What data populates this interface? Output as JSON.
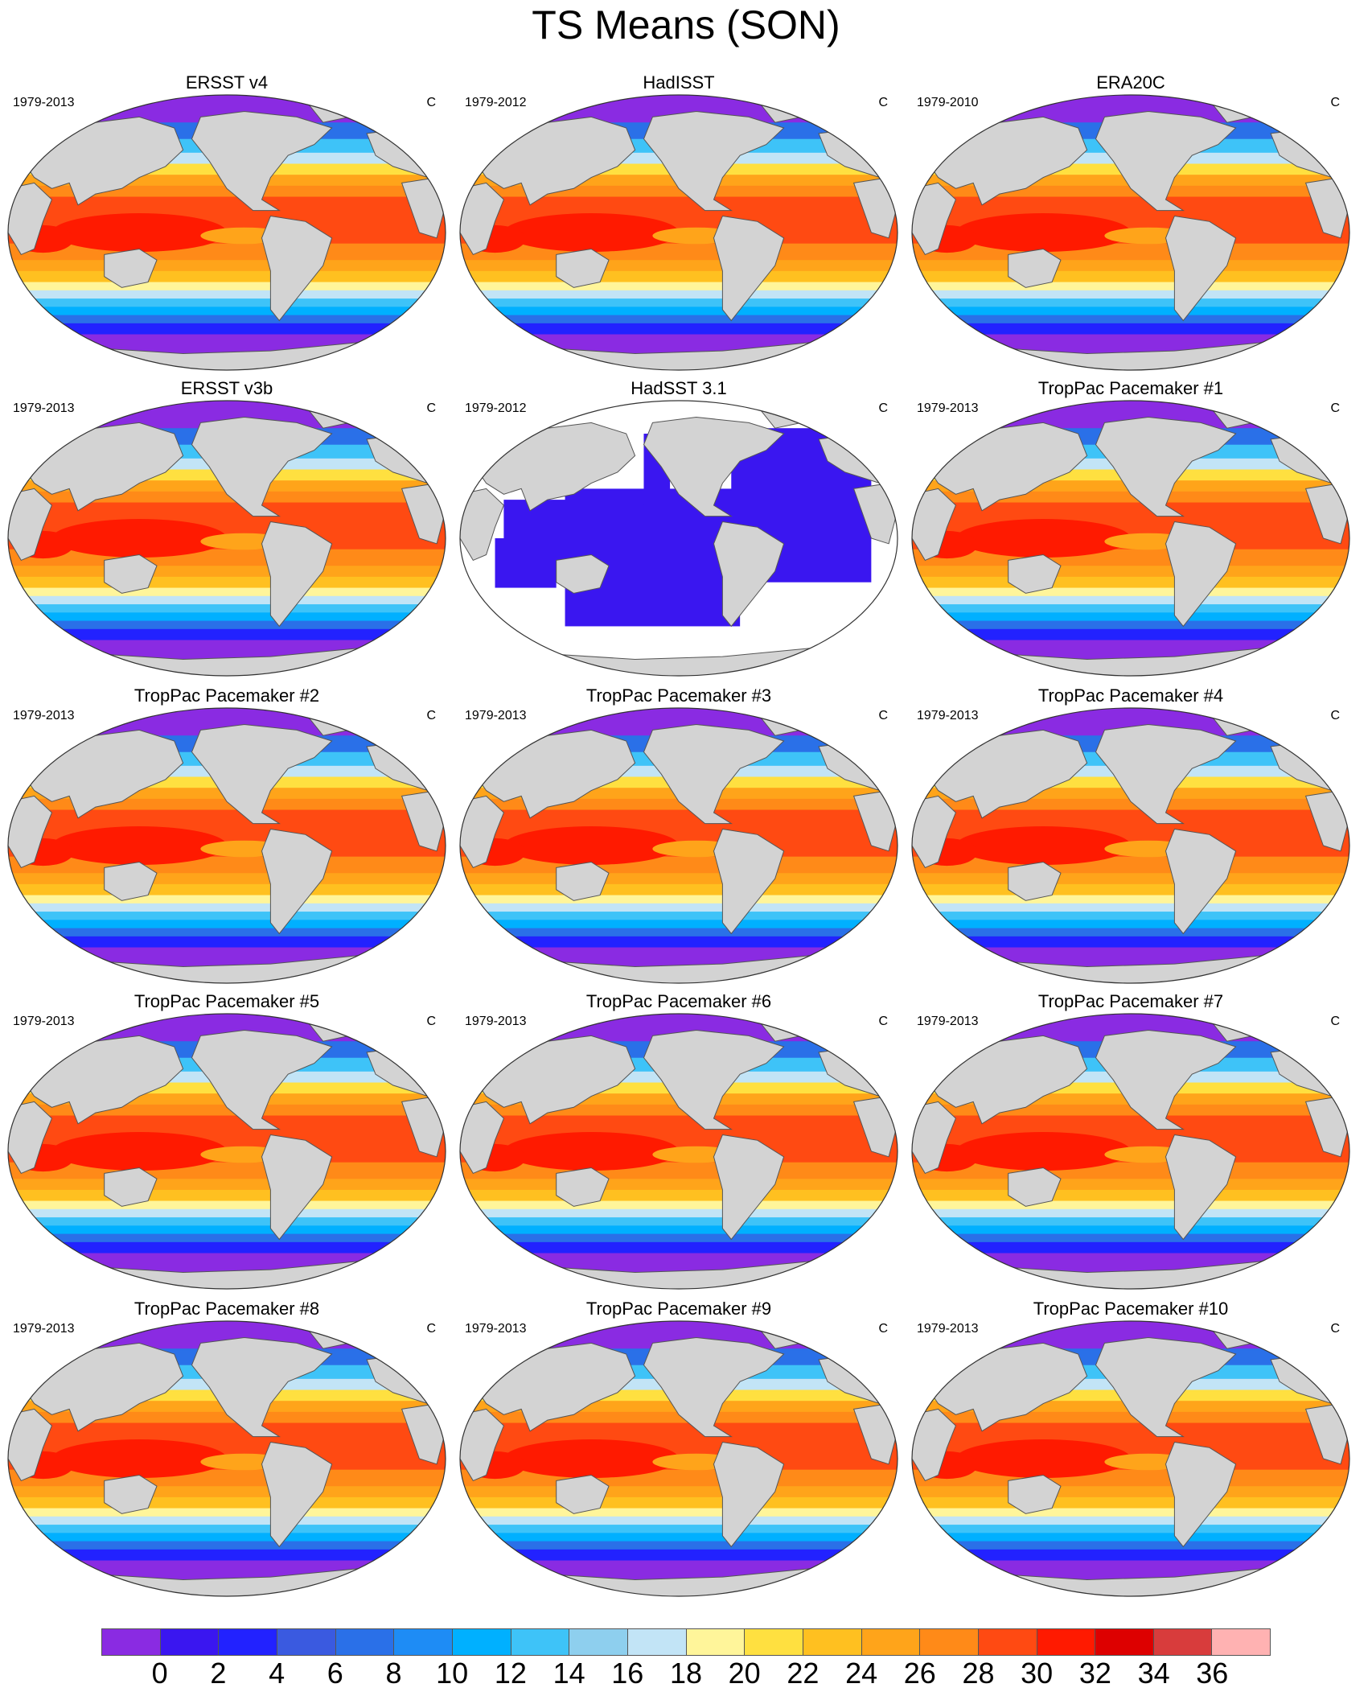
{
  "title": "TS Means (SON)",
  "unit": "C",
  "colors": {
    "land": "#d3d3d3",
    "ocean_missing": "#ffffff",
    "border": "#555555"
  },
  "colorbar": {
    "labels": [
      "0",
      "2",
      "4",
      "6",
      "8",
      "10",
      "12",
      "14",
      "16",
      "18",
      "20",
      "22",
      "24",
      "26",
      "28",
      "30",
      "32",
      "34",
      "36"
    ],
    "colors": [
      "#8a2be2",
      "#3a16f0",
      "#2222ff",
      "#3a5ae0",
      "#2a70e8",
      "#1e8cf5",
      "#00b0ff",
      "#3ec3f8",
      "#8ecfee",
      "#c2e4f6",
      "#fff59a",
      "#ffe040",
      "#ffc020",
      "#ffa41a",
      "#ff8a18",
      "#ff4a12",
      "#ff1a00",
      "#dd0000",
      "#d83c3c",
      "#ffb2b2"
    ]
  },
  "panels": [
    {
      "title": "ERSST v4",
      "period": "1979-2013",
      "unit": "C",
      "style": "full"
    },
    {
      "title": "HadISST",
      "period": "1979-2012",
      "unit": "C",
      "style": "full"
    },
    {
      "title": "ERA20C",
      "period": "1979-2010",
      "unit": "C",
      "style": "full"
    },
    {
      "title": "ERSST v3b",
      "period": "1979-2013",
      "unit": "C",
      "style": "full"
    },
    {
      "title": "HadSST 3.1",
      "period": "1979-2012",
      "unit": "C",
      "style": "sparse"
    },
    {
      "title": "TropPac Pacemaker #1",
      "period": "1979-2013",
      "unit": "C",
      "style": "full"
    },
    {
      "title": "TropPac Pacemaker #2",
      "period": "1979-2013",
      "unit": "C",
      "style": "full"
    },
    {
      "title": "TropPac Pacemaker #3",
      "period": "1979-2013",
      "unit": "C",
      "style": "full"
    },
    {
      "title": "TropPac Pacemaker #4",
      "period": "1979-2013",
      "unit": "C",
      "style": "full"
    },
    {
      "title": "TropPac Pacemaker #5",
      "period": "1979-2013",
      "unit": "C",
      "style": "full"
    },
    {
      "title": "TropPac Pacemaker #6",
      "period": "1979-2013",
      "unit": "C",
      "style": "full"
    },
    {
      "title": "TropPac Pacemaker #7",
      "period": "1979-2013",
      "unit": "C",
      "style": "full"
    },
    {
      "title": "TropPac Pacemaker #8",
      "period": "1979-2013",
      "unit": "C",
      "style": "full"
    },
    {
      "title": "TropPac Pacemaker #9",
      "period": "1979-2013",
      "unit": "C",
      "style": "full"
    },
    {
      "title": "TropPac Pacemaker #10",
      "period": "1979-2013",
      "unit": "C",
      "style": "full"
    }
  ]
}
